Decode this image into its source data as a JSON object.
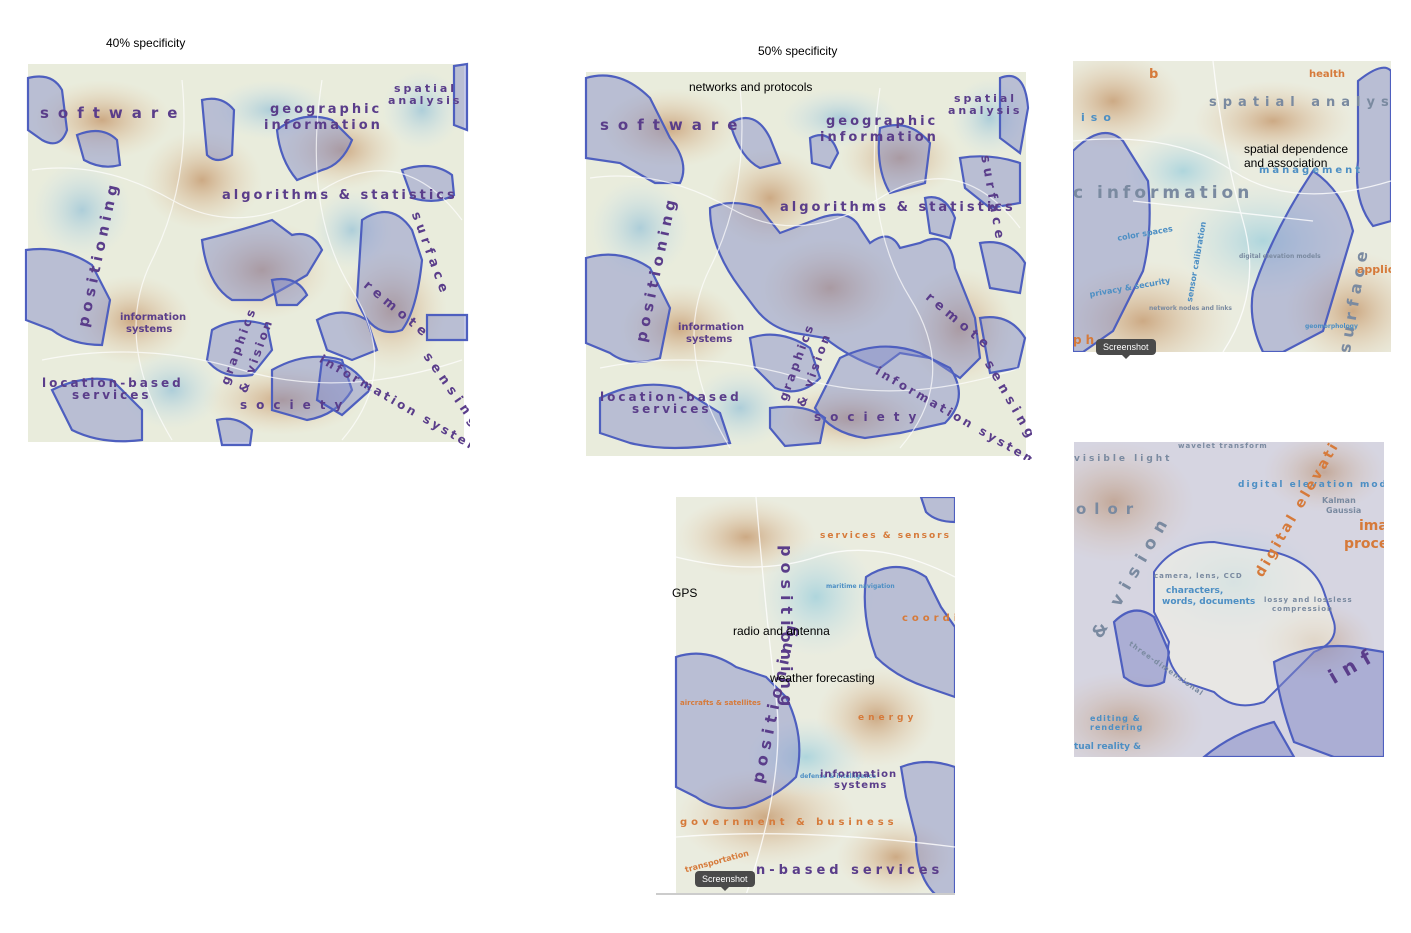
{
  "captions": {
    "left": "40% specificity",
    "middle": "50% specificity"
  },
  "annotations": {
    "networks": "networks and protocols",
    "spatial_dep": "spatial dependence\nand association",
    "gps": "GPS",
    "radio": "radio and antenna",
    "weather": "weather forecasting"
  },
  "tooltips": {
    "screenshot": "Screenshot"
  },
  "map_labels": {
    "software": "software",
    "geographic": "geographic",
    "information": "information",
    "spatial": "spatial",
    "analysis": "analysis",
    "surface": "surface",
    "algorithms": "algorithms & statistics",
    "positioning": "positioning",
    "info_systems_1": "information",
    "info_systems_2": "systems",
    "remote": "remote",
    "sensing": "sensing",
    "graphics": "graphics",
    "vision": "& vision",
    "location_based": "location-based",
    "services": "services",
    "society": "society",
    "information_systems_arc": "information systems"
  },
  "zoom1": {
    "b": "b",
    "health": "health",
    "spatial_analysis": "spatial analysis",
    "iso": "iso",
    "management": "management",
    "c_information": "c information",
    "color_spaces": "color spaces",
    "privacy": "privacy & security",
    "sensor": "sensor calibration",
    "dem": "digital elevation models",
    "applica": "applica",
    "surface": "surface",
    "network_nodes": "network nodes and links",
    "geomorph": "geomorphology",
    "ph": "ph"
  },
  "zoom2": {
    "wavelet": "wavelet transform",
    "visible_light": "visible light",
    "dem": "digital elevation mode",
    "olor": "olor",
    "vision": "& vision",
    "digital_elev": "digital elevati",
    "ima": "ima",
    "proce": "proce",
    "characters": "characters,",
    "words": "words, documents",
    "camera": "camera, lens, CCD",
    "lossy": "lossy and lossless",
    "compression": "compression",
    "three_d": "three-dimensional",
    "editing": "editing &",
    "rendering": "rendering",
    "vr": "tual reality &",
    "inf": "inf",
    "kalman": "Kalman",
    "gaussia": "Gaussia"
  },
  "zoom3": {
    "services_sensors": "services & sensors",
    "positioning": "positioning",
    "aircraft": "aircrafts & satellites",
    "energy": "energy",
    "coord": "coordi",
    "info1": "information",
    "info2": "systems",
    "gov": "government & business",
    "transport": "transportation",
    "lbs": "n-based services",
    "maritime": "maritime navigation",
    "defense": "defense & intelligence"
  }
}
